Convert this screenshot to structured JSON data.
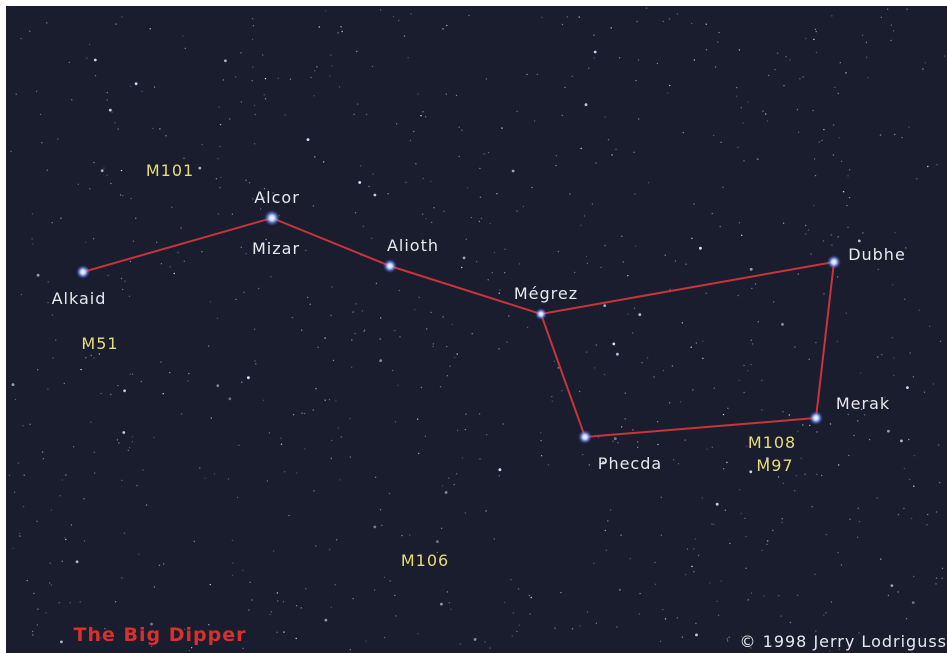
{
  "title": "The Big Dipper",
  "credit": "© 1998 Jerry Lodriguss",
  "stars": [
    {
      "label": "Alkaid"
    },
    {
      "label": "Alcor"
    },
    {
      "label": "Mizar"
    },
    {
      "label": "Alioth"
    },
    {
      "label": "Mégrez"
    },
    {
      "label": "Dubhe"
    },
    {
      "label": "Merak"
    },
    {
      "label": "Phecda"
    }
  ],
  "deep_sky_objects": [
    {
      "label": "M101"
    },
    {
      "label": "M51"
    },
    {
      "label": "M108"
    },
    {
      "label": "M97"
    },
    {
      "label": "M106"
    }
  ]
}
